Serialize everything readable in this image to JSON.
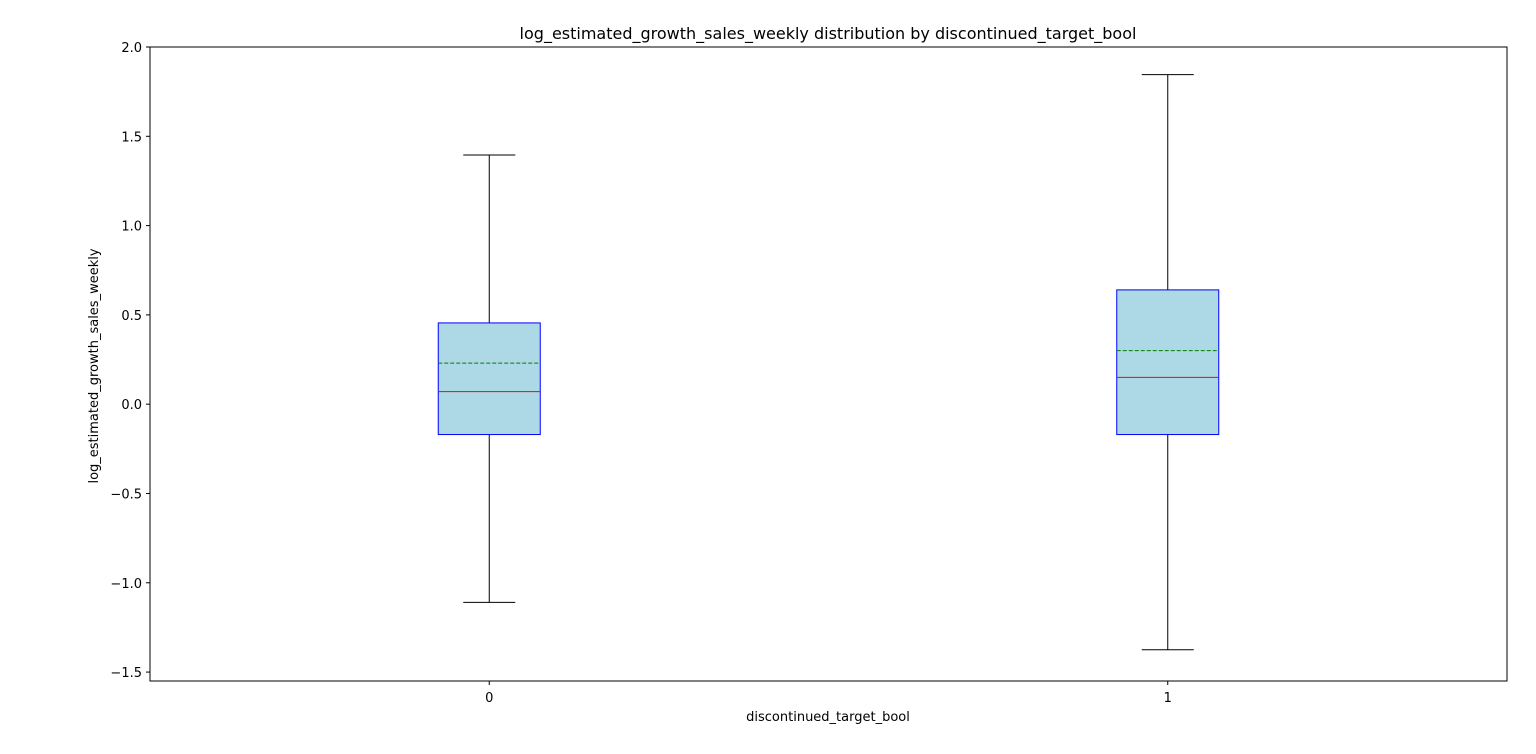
{
  "chart_data": {
    "type": "box",
    "title": "log_estimated_growth_sales_weekly distribution by discontinued_target_bool",
    "xlabel": "discontinued_target_bool",
    "ylabel": "log_estimated_growth_sales_weekly",
    "ylim": [
      -1.55,
      2.0
    ],
    "yticks": [
      "-1.5",
      "-1.0",
      "-0.5",
      "0.0",
      "0.5",
      "1.0",
      "1.5",
      "2.0"
    ],
    "grid": false,
    "categories": [
      "0",
      "1"
    ],
    "boxes": [
      {
        "category": "0",
        "whisker_low": -1.11,
        "q1": -0.17,
        "median": 0.07,
        "mean": 0.23,
        "q3": 0.455,
        "whisker_high": 1.395
      },
      {
        "category": "1",
        "whisker_low": -1.375,
        "q1": -0.17,
        "median": 0.15,
        "mean": 0.3,
        "q3": 0.64,
        "whisker_high": 1.845
      }
    ],
    "colors": {
      "box_fill": "#add8e6",
      "box_edge": "#0000ff",
      "median": "#ff0000",
      "mean": "#008000",
      "whisker": "#000000"
    }
  }
}
